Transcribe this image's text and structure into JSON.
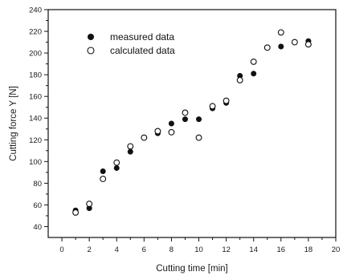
{
  "chart_data": {
    "type": "scatter",
    "title": "",
    "xlabel": "Cutting time [min]",
    "ylabel": "Cutting force Y [N]",
    "xlim": [
      -1,
      20
    ],
    "ylim": [
      30,
      240
    ],
    "x_ticks": [
      0,
      2,
      4,
      6,
      8,
      10,
      12,
      14,
      16,
      18,
      20
    ],
    "x_tick_labels": [
      "0",
      "2",
      "4",
      "6",
      "8",
      "10",
      "12",
      "14",
      "16",
      "18",
      "20"
    ],
    "y_ticks": [
      40,
      60,
      80,
      100,
      120,
      140,
      160,
      180,
      200,
      220,
      240
    ],
    "y_tick_labels": [
      "40",
      "60",
      "80",
      "100",
      "120",
      "140",
      "160",
      "180",
      "200",
      "220",
      "240"
    ],
    "grid": false,
    "legend_position": "top-left",
    "series": [
      {
        "name": "measured data",
        "marker": "filled-circle",
        "color": "#111111",
        "x": [
          1,
          2,
          3,
          4,
          5,
          7,
          8,
          9,
          10,
          11,
          12,
          13,
          14,
          16,
          18
        ],
        "y": [
          55,
          57,
          91,
          94,
          109,
          126,
          135,
          139,
          139,
          149,
          154,
          179,
          181,
          206,
          211
        ]
      },
      {
        "name": "calculated data",
        "marker": "open-circle",
        "color": "#111111",
        "x": [
          1,
          2,
          3,
          4,
          5,
          6,
          7,
          8,
          9,
          10,
          11,
          12,
          13,
          14,
          15,
          16,
          17,
          18
        ],
        "y": [
          53,
          61,
          84,
          99,
          114,
          122,
          128,
          127,
          145,
          122,
          151,
          156,
          175,
          192,
          205,
          219,
          210,
          208
        ]
      }
    ]
  }
}
